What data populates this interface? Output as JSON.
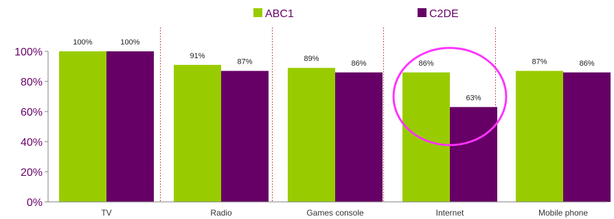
{
  "chart_data": {
    "type": "bar",
    "categories": [
      "TV",
      "Radio",
      "Games console",
      "Internet",
      "Mobile phone"
    ],
    "series": [
      {
        "name": "ABC1",
        "values": [
          100,
          91,
          89,
          86,
          87
        ],
        "labels": [
          "100%",
          "91%",
          "89%",
          "86%",
          "87%"
        ],
        "color": "#99CC00"
      },
      {
        "name": "C2DE",
        "values": [
          100,
          87,
          86,
          63,
          86
        ],
        "labels": [
          "100%",
          "87%",
          "86%",
          "63%",
          "86%"
        ],
        "color": "#660066"
      }
    ],
    "y_ticks": [
      "0%",
      "20%",
      "40%",
      "60%",
      "80%",
      "100%"
    ],
    "ylim": [
      0,
      100
    ],
    "legend_position": "top-center",
    "separator_color": "#C0504D",
    "highlight": {
      "category": "Internet",
      "shape": "ellipse",
      "color": "#FF33FF"
    }
  }
}
